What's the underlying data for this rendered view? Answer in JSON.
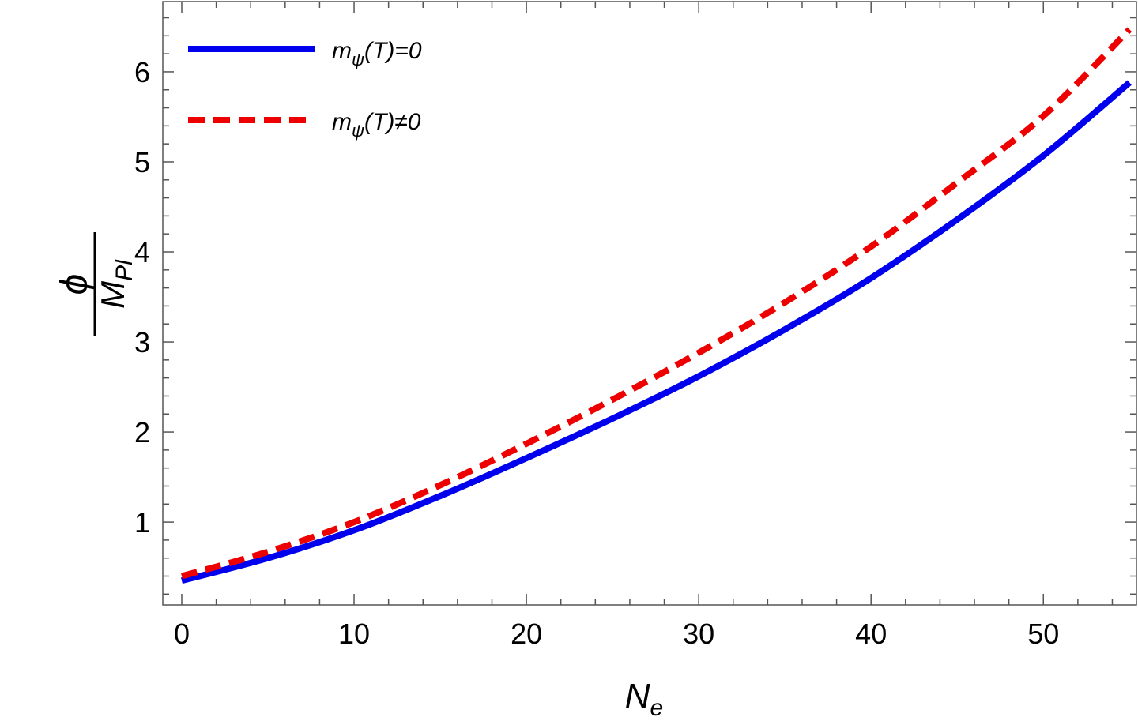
{
  "chart_data": {
    "type": "line",
    "title": "",
    "xlabel": {
      "main": "N",
      "sub": "e"
    },
    "ylabel": {
      "numerator": "ϕ",
      "denominator_main": "M",
      "denominator_sub": "Pl"
    },
    "xlim": [
      -1.1,
      55.4
    ],
    "ylim": [
      0.08,
      6.78
    ],
    "xticks": [
      0,
      10,
      20,
      30,
      40,
      50
    ],
    "yticks": [
      1,
      2,
      3,
      4,
      5,
      6
    ],
    "xtick_labels": [
      "0",
      "10",
      "20",
      "30",
      "40",
      "50"
    ],
    "ytick_labels": [
      "1",
      "2",
      "3",
      "4",
      "5",
      "6"
    ],
    "x_minor_step": 2,
    "y_minor_step": 0.2,
    "grid": false,
    "legend_position": "top-left",
    "series": [
      {
        "name": "m_ψ(T)=0",
        "label_main": "m",
        "label_sub": "ψ",
        "label_rest": "(T)=0",
        "style": "solid",
        "color": "#0000ee",
        "x": [
          0,
          5,
          10,
          15,
          20,
          25,
          30,
          35,
          40,
          45,
          50,
          55
        ],
        "y": [
          0.35,
          0.6,
          0.91,
          1.29,
          1.71,
          2.15,
          2.62,
          3.14,
          3.71,
          4.36,
          5.07,
          5.88
        ]
      },
      {
        "name": "m_ψ(T)≠0",
        "label_main": "m",
        "label_sub": "ψ",
        "label_rest": "(T)≠0",
        "style": "dashed",
        "color": "#ee0000",
        "x": [
          0,
          5,
          10,
          15,
          20,
          25,
          30,
          35,
          40,
          45,
          50,
          55
        ],
        "y": [
          0.4,
          0.67,
          1.0,
          1.41,
          1.87,
          2.36,
          2.88,
          3.44,
          4.06,
          4.77,
          5.51,
          6.47
        ]
      }
    ]
  }
}
